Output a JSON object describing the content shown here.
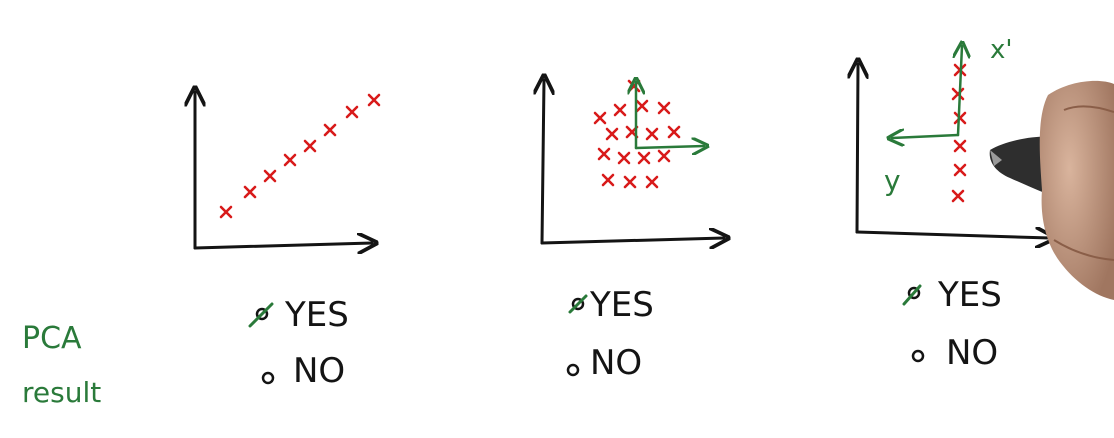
{
  "side_label": {
    "line1": "PCA",
    "line2": "result"
  },
  "colors": {
    "ink": "#141414",
    "marker": "#d81a1a",
    "pen": "#2a7a3a",
    "paper": "#ffffff"
  },
  "panels": [
    {
      "id": "linear",
      "options": [
        {
          "label": "YES",
          "checked": true
        },
        {
          "label": "NO",
          "checked": false
        }
      ]
    },
    {
      "id": "cluster",
      "options": [
        {
          "label": "YES",
          "checked": true
        },
        {
          "label": "NO",
          "checked": false
        }
      ]
    },
    {
      "id": "vertical",
      "axis_labels": {
        "primary": "x'",
        "secondary": "y"
      },
      "options": [
        {
          "label": "YES",
          "checked": true
        },
        {
          "label": "NO",
          "checked": false
        }
      ]
    }
  ],
  "icons": {
    "hand": "hand-holding-pen-icon"
  }
}
